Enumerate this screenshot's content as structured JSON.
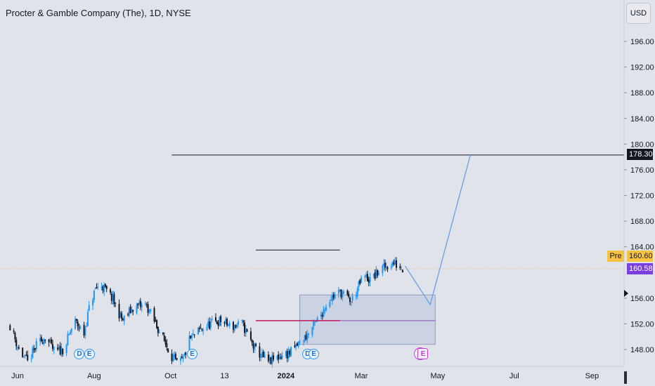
{
  "header": {
    "title": "Procter & Gamble Company (The), 1D, NYSE",
    "currency": "USD"
  },
  "price_tags": {
    "target": "178.30",
    "pre_label": "Pre",
    "pre_price": "160.60",
    "last_price": "160.58"
  },
  "markers": {
    "dividend": "D",
    "earnings": "E",
    "split": "⚡"
  },
  "colors": {
    "up": "#2196f3",
    "down": "#131722",
    "target_line": "#131722",
    "support_line": "#c2185b",
    "projection": "#64a0e8",
    "zone_fill": "#b8c4dd",
    "pre_tag": "#f5c242",
    "last_tag": "#7b3fe0"
  },
  "chart_data": {
    "type": "candlestick",
    "title": "Procter & Gamble Company (The), 1D, NYSE",
    "x_tick_labels": [
      "Jun",
      "Aug",
      "Oct",
      "13",
      "2024",
      "Mar",
      "May",
      "Jul",
      "Sep"
    ],
    "y_tick_labels": [
      "196.00",
      "192.00",
      "188.00",
      "184.00",
      "180.00",
      "176.00",
      "172.00",
      "168.00",
      "164.00",
      "156.00",
      "152.00",
      "148.00"
    ],
    "ylim": [
      145.5,
      199
    ],
    "price_segments": [
      {
        "from": "2023-05-26",
        "to": "2023-06-23",
        "points": [
          151.8,
          148.0,
          146.0,
          148.6,
          150.0
        ]
      },
      {
        "from": "2023-06-23",
        "to": "2023-07-24",
        "points": [
          150.0,
          147.5,
          148.2,
          152.5,
          150.5
        ]
      },
      {
        "from": "2023-07-24",
        "to": "2023-08-07",
        "points": [
          150.5,
          155.0,
          157.5,
          158.0
        ]
      },
      {
        "from": "2023-08-07",
        "to": "2023-09-01",
        "points": [
          158.0,
          156.0,
          152.5,
          154.5
        ]
      },
      {
        "from": "2023-09-01",
        "to": "2023-10-02",
        "points": [
          154.5,
          155.0,
          151.0,
          147.0
        ]
      },
      {
        "from": "2023-10-02",
        "to": "2023-10-16",
        "points": [
          147.0,
          145.6,
          146.5,
          149.5
        ]
      },
      {
        "from": "2023-10-16",
        "to": "2023-11-27",
        "points": [
          149.5,
          151.0,
          152.0,
          152.5,
          151.5,
          152.0
        ]
      },
      {
        "from": "2023-11-27",
        "to": "2023-12-28",
        "points": [
          152.0,
          148.0,
          146.0,
          147.0
        ]
      },
      {
        "from": "2023-12-28",
        "to": "2024-01-19",
        "points": [
          147.0,
          147.5,
          149.0,
          150.5
        ]
      },
      {
        "from": "2024-01-19",
        "to": "2024-02-22",
        "points": [
          150.5,
          153.0,
          156.0,
          157.0,
          155.5
        ]
      },
      {
        "from": "2024-02-22",
        "to": "2024-03-08",
        "points": [
          155.5,
          157.5,
          159.5,
          158.8
        ]
      },
      {
        "from": "2024-03-08",
        "to": "2024-04-04",
        "points": [
          158.8,
          160.5,
          161.5,
          160.58
        ]
      }
    ],
    "candle_seed": 11,
    "levels": [
      {
        "price": 178.3,
        "from": "2023-10-02",
        "to": "end"
      },
      {
        "price": 163.5,
        "from": "2023-12-08",
        "to": "2024-02-13"
      },
      {
        "price": 152.5,
        "from": "2023-12-08",
        "to": "2024-02-13"
      }
    ],
    "zone": {
      "from": "2024-01-12",
      "to": "2024-04-29",
      "top": 156.5,
      "bottom": 148.8
    },
    "zone_midline": 152.5,
    "projection": [
      {
        "date": "2024-04-05",
        "price": 161.0
      },
      {
        "date": "2024-04-25",
        "price": 155.0
      },
      {
        "date": "2024-05-27",
        "price": 178.3
      }
    ],
    "pre_market": 160.6,
    "last": 160.58,
    "event_markers": [
      {
        "type": "dividend",
        "date": "2023-07-20"
      },
      {
        "type": "earnings",
        "date": "2023-07-28"
      },
      {
        "type": "earnings",
        "date": "2023-10-18"
      },
      {
        "type": "dividend",
        "date": "2024-01-18"
      },
      {
        "type": "earnings",
        "date": "2024-01-23"
      },
      {
        "type": "split",
        "date": "2024-04-17"
      },
      {
        "type": "earnings_future",
        "date": "2024-04-19"
      }
    ]
  }
}
